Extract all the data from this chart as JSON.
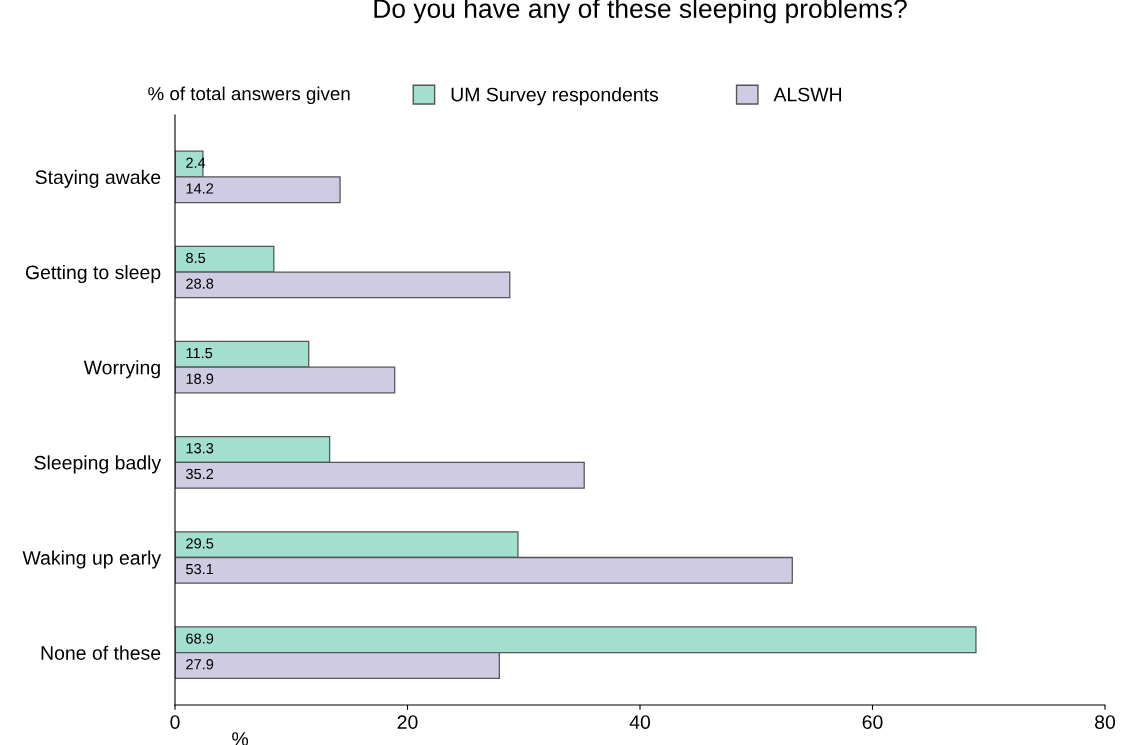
{
  "chart_data": {
    "type": "bar",
    "orientation": "horizontal",
    "title": "Do you have any of these sleeping problems?",
    "xlabel": "%",
    "legend_title": "% of total answers given",
    "categories": [
      "Staying awake",
      "Getting to sleep",
      "Worrying",
      "Sleeping badly",
      "Waking up early",
      "None of these"
    ],
    "series": [
      {
        "name": "UM Survey respondents",
        "color": "#a3dfcf",
        "values": [
          2.4,
          8.5,
          11.5,
          13.3,
          29.5,
          68.9
        ]
      },
      {
        "name": "ALSWH",
        "color": "#cfcbe2",
        "values": [
          14.2,
          28.8,
          18.9,
          35.2,
          53.1,
          27.9
        ]
      }
    ],
    "xlim": [
      0,
      80
    ],
    "xticks": [
      0,
      20,
      40,
      60,
      80
    ],
    "data_labels": true,
    "grid": false,
    "legend": "top"
  }
}
